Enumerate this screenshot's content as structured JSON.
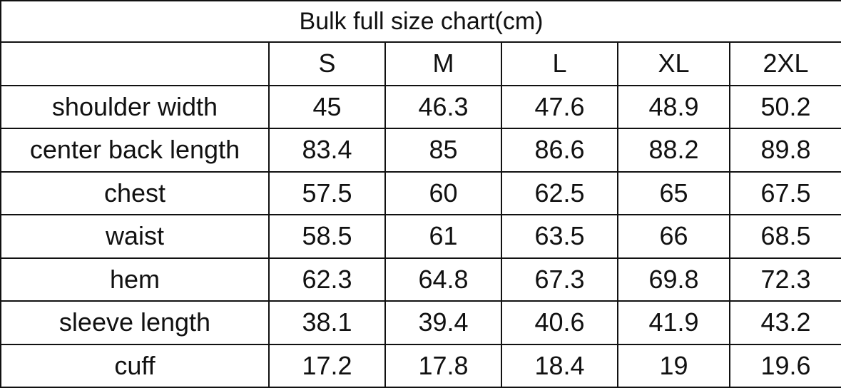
{
  "table": {
    "title": "Bulk full size chart(cm)",
    "columns": [
      "S",
      "M",
      "L",
      "XL",
      "2XL"
    ],
    "rows": [
      [
        "shoulder width",
        45,
        46.3,
        47.6,
        48.9,
        50.2
      ],
      [
        "center back length",
        83.4,
        85,
        86.6,
        88.2,
        89.8
      ],
      [
        "chest",
        57.5,
        60,
        62.5,
        65,
        67.5
      ],
      [
        "waist",
        58.5,
        61,
        63.5,
        66,
        68.5
      ],
      [
        "hem",
        62.3,
        64.8,
        67.3,
        69.8,
        72.3
      ],
      [
        "sleeve length",
        38.1,
        39.4,
        40.6,
        41.9,
        43.2
      ],
      [
        "cuff",
        17.2,
        17.8,
        18.4,
        19,
        19.6
      ]
    ]
  }
}
